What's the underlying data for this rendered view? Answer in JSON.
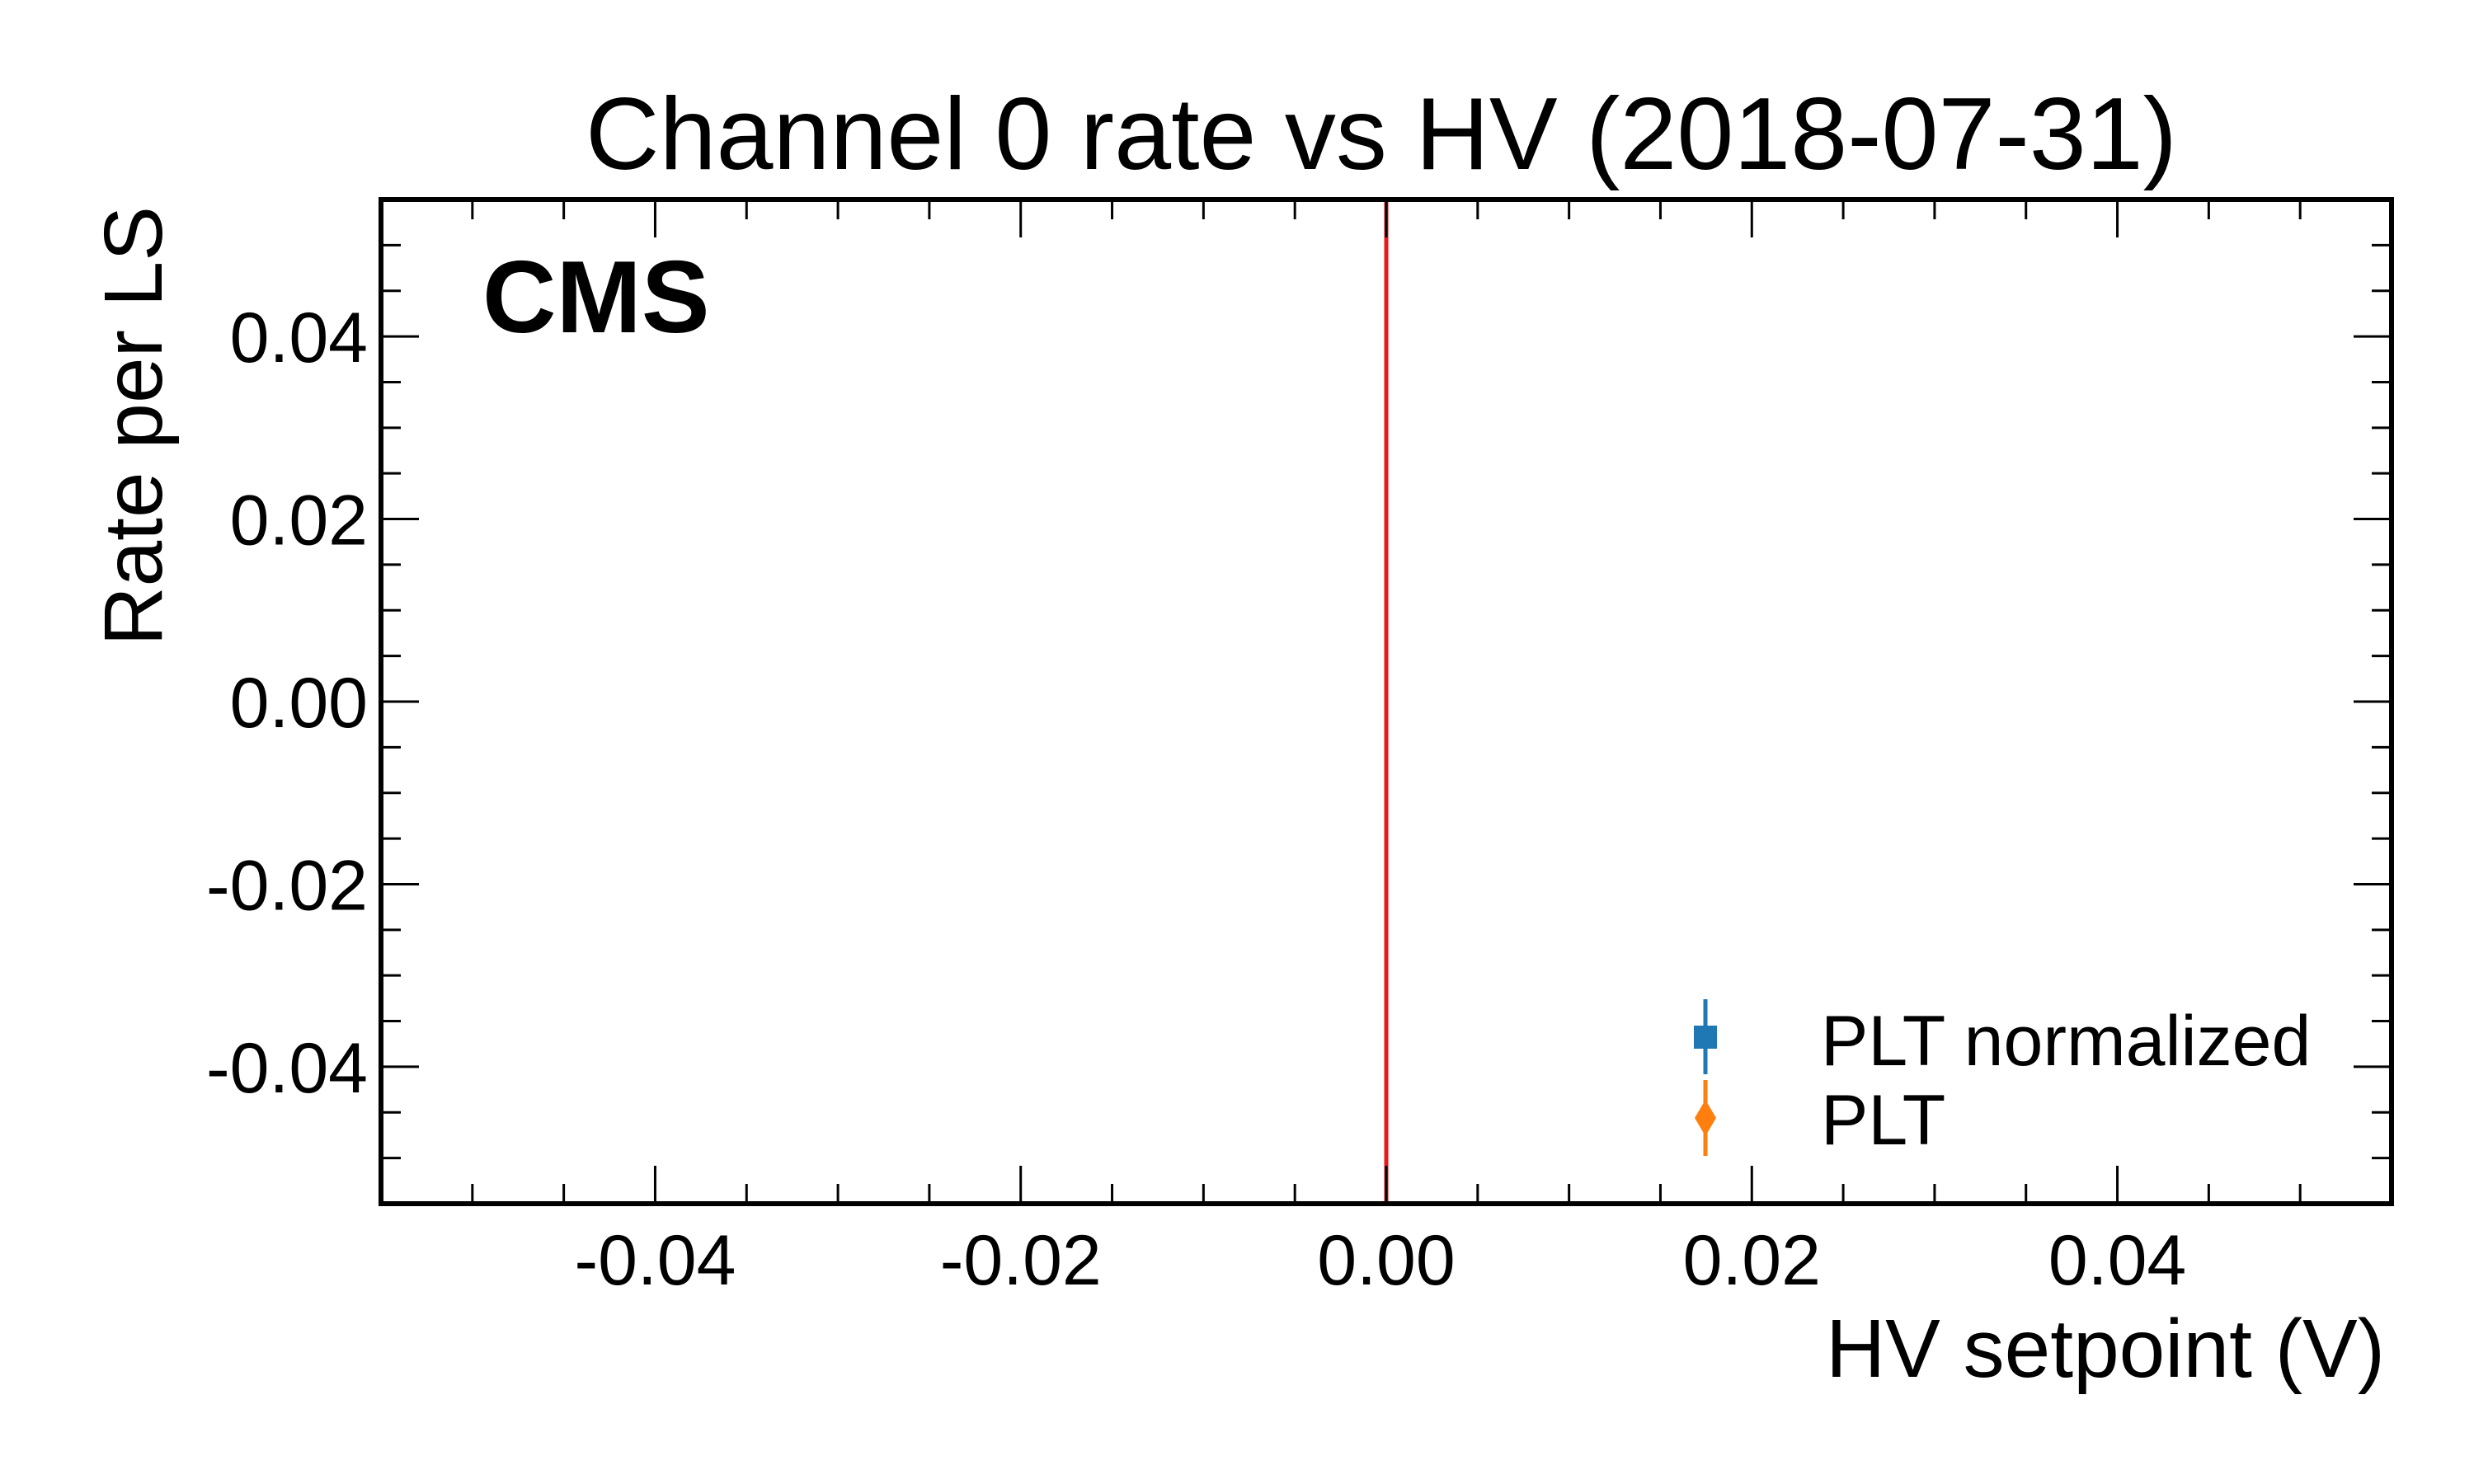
{
  "chart_data": {
    "type": "scatter",
    "title": "Channel 0 rate vs HV (2018-07-31)",
    "xlabel": "HV setpoint (V)",
    "ylabel": "Rate per LS",
    "xlim": [
      -0.055,
      0.055
    ],
    "ylim": [
      -0.055,
      0.055
    ],
    "x_ticks": [
      -0.04,
      -0.02,
      0.0,
      0.02,
      0.04
    ],
    "x_tick_labels": [
      "-0.04",
      "-0.02",
      "0.00",
      "0.02",
      "0.04"
    ],
    "y_ticks": [
      0.04,
      0.02,
      0.0,
      -0.02,
      -0.04
    ],
    "y_tick_labels": [
      "0.04",
      "0.02",
      "0.00",
      "-0.02",
      "-0.04"
    ],
    "minor_tick_step": 0.005,
    "grid": false,
    "logo_text": "CMS",
    "vline": {
      "x": 0.0,
      "color": "#e8191e"
    },
    "series": [
      {
        "name": "PLT normalized",
        "marker": "square",
        "color": "#1f77b4",
        "points": []
      },
      {
        "name": "PLT",
        "marker": "diamond",
        "color": "#ff7f0e",
        "points": []
      }
    ],
    "legend_position": "lower-right"
  }
}
